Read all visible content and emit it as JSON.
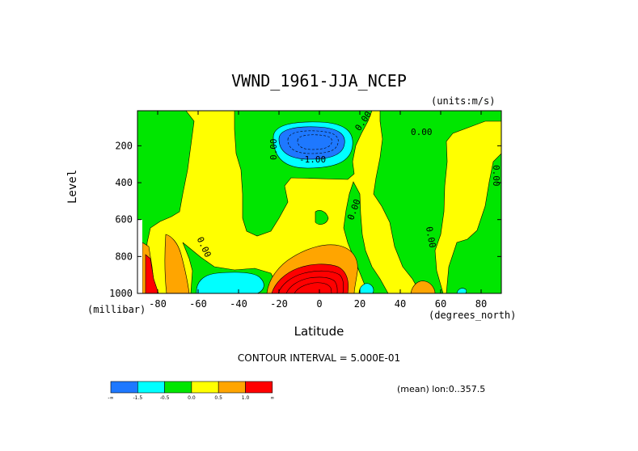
{
  "chart_data": {
    "type": "contour",
    "title": "VWND_1961-JJA_NCEP",
    "units_label": "(units:m/s)",
    "xlabel": "Latitude",
    "xunit": "(degrees_north)",
    "ylabel": "Level",
    "yunit": "(millibar)",
    "x_ticks": [
      -80,
      -60,
      -40,
      -20,
      0,
      20,
      40,
      60,
      80
    ],
    "x_tick_labels": [
      "-80",
      "-60",
      "-40",
      "-20",
      "0",
      "20",
      "40",
      "60",
      "80"
    ],
    "y_ticks": [
      200,
      400,
      600,
      800,
      1000
    ],
    "y_tick_labels": [
      "200",
      "400",
      "600",
      "800",
      "1000"
    ],
    "xlim": [
      -90,
      90
    ],
    "ylim": [
      1000,
      10
    ],
    "contour_interval_text": "CONTOUR INTERVAL = 5.000E-01",
    "contour_labels": [
      "0.00",
      "0.00",
      "0.00",
      "-1.00",
      "0.00",
      "0.00",
      "0.00",
      "0.00"
    ],
    "colorbar": {
      "colors": [
        "#1e78ff",
        "#00ffff",
        "#00e600",
        "#ffff00",
        "#ffa500",
        "#ff0000"
      ],
      "labels": [
        "-∞",
        "-1.5",
        "-0.5",
        "0.0",
        "0.5",
        "1.0",
        "∞"
      ]
    },
    "footnote": "(mean) lon:0..357.5"
  }
}
